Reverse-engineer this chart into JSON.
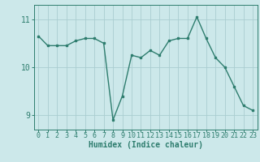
{
  "x": [
    0,
    1,
    2,
    3,
    4,
    5,
    6,
    7,
    8,
    9,
    10,
    11,
    12,
    13,
    14,
    15,
    16,
    17,
    18,
    19,
    20,
    21,
    22,
    23
  ],
  "y": [
    10.65,
    10.45,
    10.45,
    10.45,
    10.55,
    10.6,
    10.6,
    10.5,
    8.9,
    9.4,
    10.25,
    10.2,
    10.35,
    10.25,
    10.55,
    10.6,
    10.6,
    11.05,
    10.6,
    10.2,
    10.0,
    9.6,
    9.2,
    9.1
  ],
  "line_color": "#2e7d6e",
  "bg_color": "#cce8ea",
  "grid_color": "#aacdd0",
  "xlabel": "Humidex (Indice chaleur)",
  "ylim": [
    8.7,
    11.3
  ],
  "xlim": [
    -0.5,
    23.5
  ],
  "yticks": [
    9,
    10,
    11
  ],
  "xticks": [
    0,
    1,
    2,
    3,
    4,
    5,
    6,
    7,
    8,
    9,
    10,
    11,
    12,
    13,
    14,
    15,
    16,
    17,
    18,
    19,
    20,
    21,
    22,
    23
  ],
  "xlabel_fontsize": 7,
  "tick_fontsize": 6,
  "ytick_fontsize": 7,
  "marker": "s",
  "marker_size": 2.0,
  "line_width": 1.0
}
